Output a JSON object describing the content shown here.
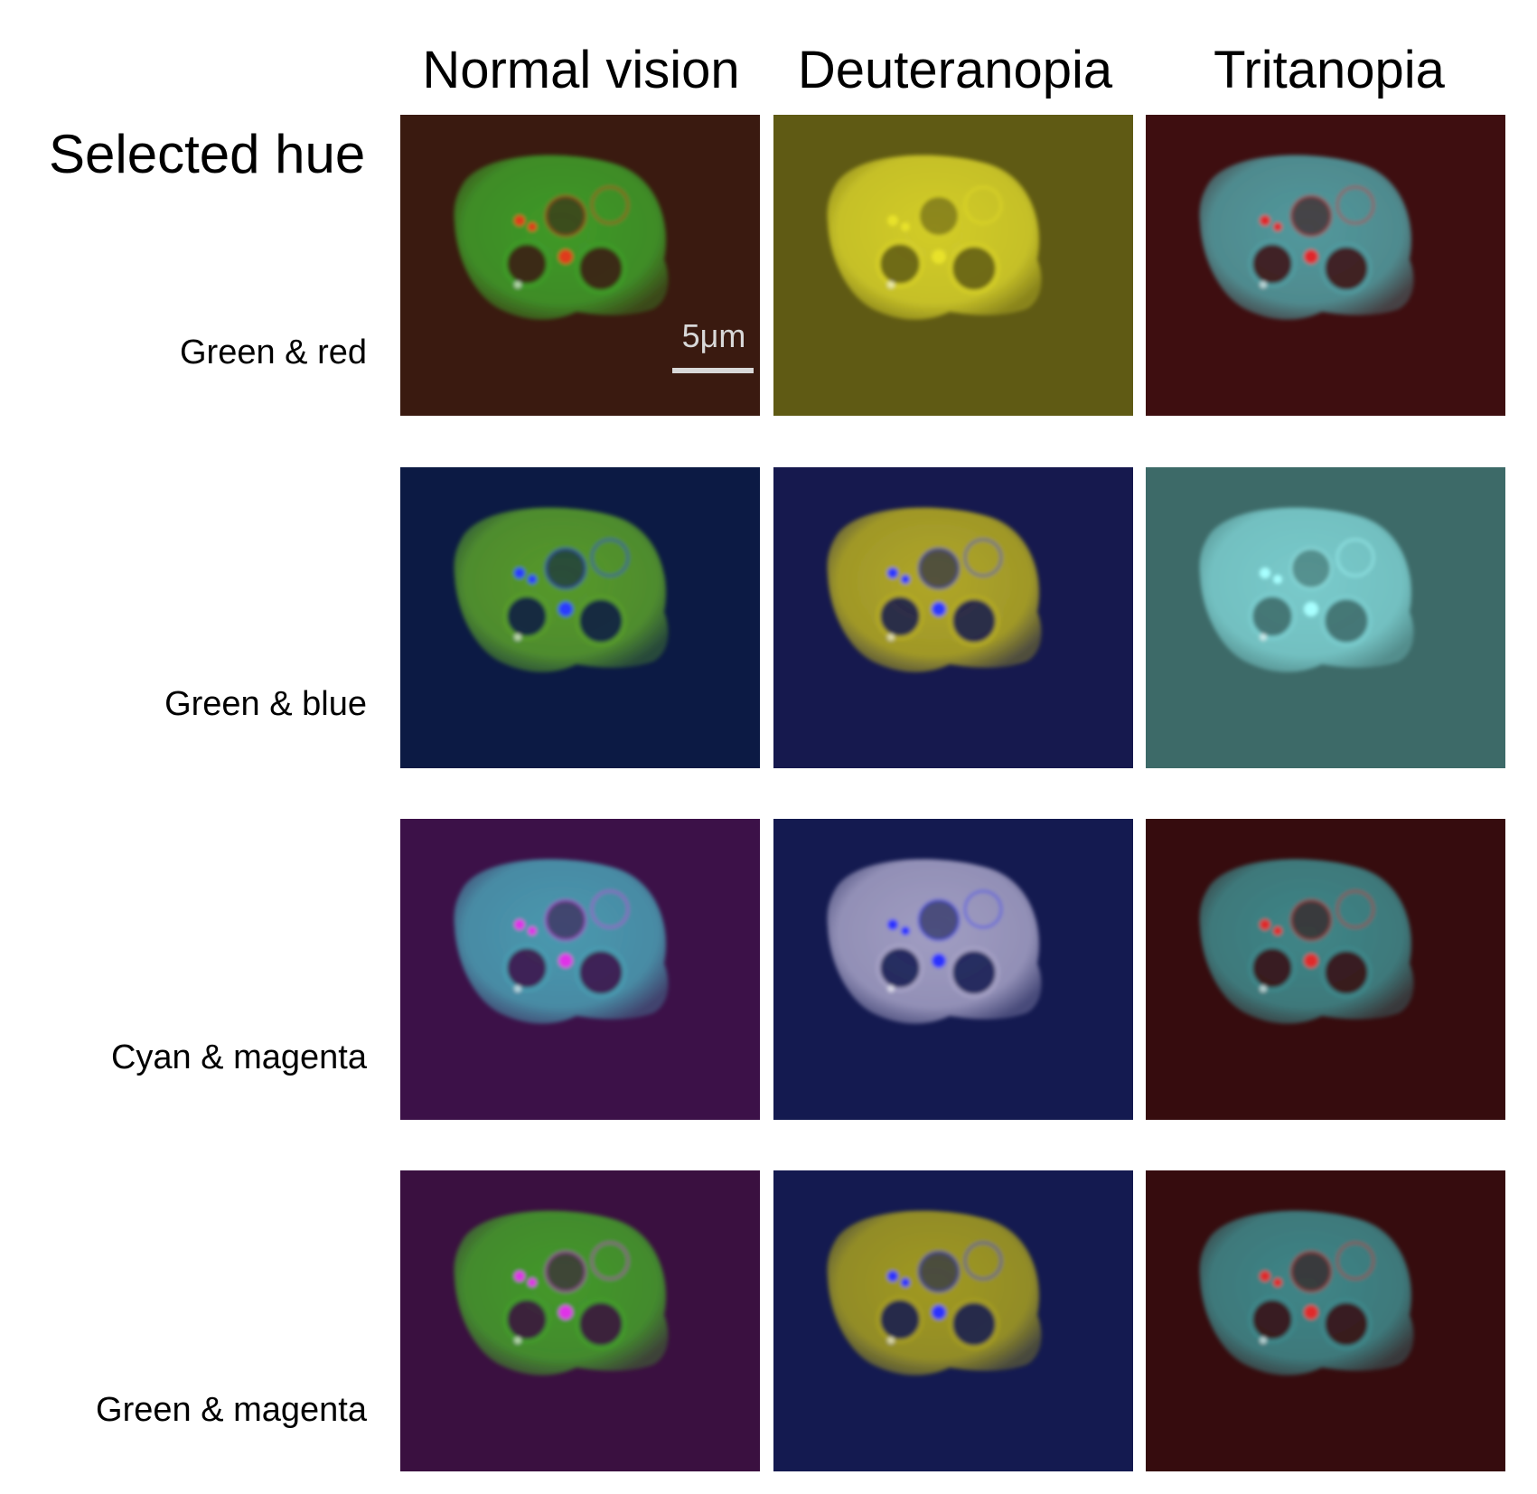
{
  "section_title": "Selected hue",
  "columns": [
    "Normal vision",
    "Deuteranopia",
    "Tritanopia"
  ],
  "scale_bar": {
    "label": "5μm"
  },
  "rows": [
    {
      "label": "Green & red",
      "panels": [
        {
          "bg": "#3a1a10",
          "body": "#3fa02a",
          "marker": "#e03a1c"
        },
        {
          "bg": "#5f5a14",
          "body": "#d8d22a",
          "marker": "#e8e22a"
        },
        {
          "bg": "#3e0e10",
          "body": "#52a0a4",
          "marker": "#e0282c"
        }
      ]
    },
    {
      "label": "Green & blue",
      "panels": [
        {
          "bg": "#0c1a44",
          "body": "#5aa02a",
          "marker": "#2a3aff"
        },
        {
          "bg": "#16194e",
          "body": "#b8ae22",
          "marker": "#2a38ff"
        },
        {
          "bg": "#3d6a68",
          "body": "#7ccfd0",
          "marker": "#a8ffff"
        }
      ]
    },
    {
      "label": "Cyan & magenta",
      "panels": [
        {
          "bg": "#3c1148",
          "body": "#4aa0b4",
          "marker": "#e030e8"
        },
        {
          "bg": "#141a50",
          "body": "#a8a4c8",
          "marker": "#2a30ff"
        },
        {
          "bg": "#360c0e",
          "body": "#3f8c8e",
          "marker": "#e02a2a"
        }
      ]
    },
    {
      "label": "Green & magenta",
      "panels": [
        {
          "bg": "#3a1040",
          "body": "#44a02a",
          "marker": "#e030e8"
        },
        {
          "bg": "#141a50",
          "body": "#a8a020",
          "marker": "#2a30ff"
        },
        {
          "bg": "#360c0e",
          "body": "#3f8c8e",
          "marker": "#e02a2a"
        }
      ]
    }
  ]
}
